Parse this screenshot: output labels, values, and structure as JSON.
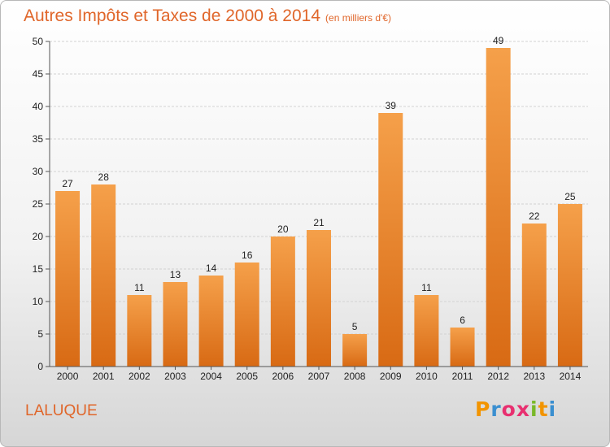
{
  "title": {
    "main": "Autres Impôts et Taxes de 2000 à 2014",
    "unit": "(en milliers d'€)"
  },
  "location": "LALUQUE",
  "brand": {
    "letters": [
      "P",
      "r",
      "o",
      "x",
      "i",
      "t",
      "i"
    ],
    "colors": [
      "#f29400",
      "#3a8fd0",
      "#e83070",
      "#e83070",
      "#7ab82a",
      "#f29400",
      "#3a8fd0"
    ]
  },
  "colors": {
    "bar_light": "#f5a04a",
    "bar_dark": "#d86a14",
    "accent": "#e0662a"
  },
  "chart_data": {
    "type": "bar",
    "categories": [
      "2000",
      "2001",
      "2002",
      "2003",
      "2004",
      "2005",
      "2006",
      "2007",
      "2008",
      "2009",
      "2010",
      "2011",
      "2012",
      "2013",
      "2014"
    ],
    "values": [
      27,
      28,
      11,
      13,
      14,
      16,
      20,
      21,
      5,
      39,
      11,
      6,
      49,
      22,
      25
    ],
    "ylim": [
      0,
      50
    ],
    "yticks": [
      0,
      5,
      10,
      15,
      20,
      25,
      30,
      35,
      40,
      45,
      50
    ],
    "grid": true,
    "data_labels": true
  }
}
